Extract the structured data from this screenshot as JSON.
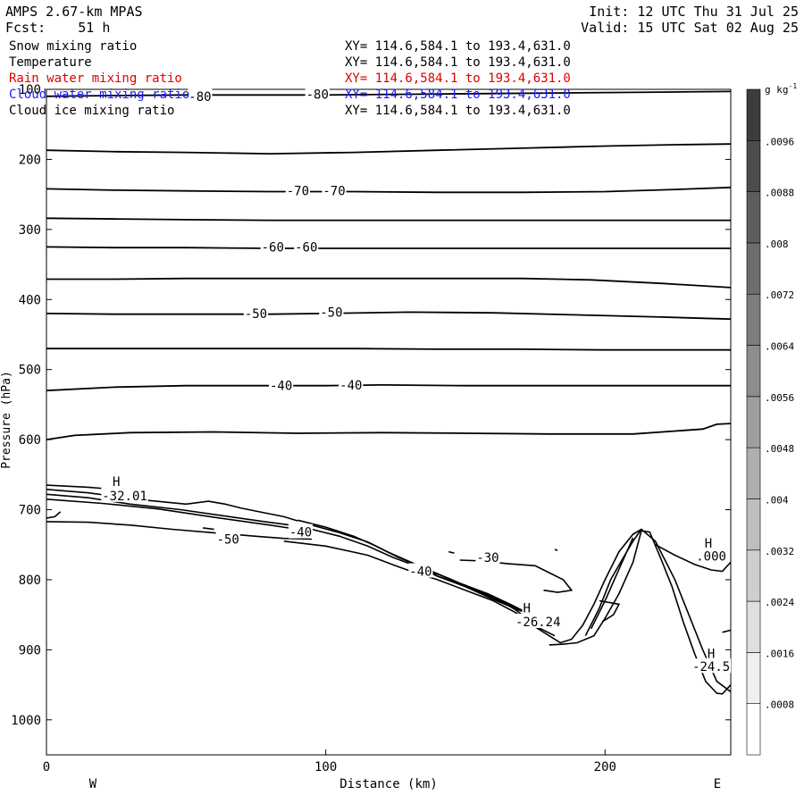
{
  "header": {
    "model": "AMPS 2.67-km MPAS",
    "forecast": "Fcst:    51 h",
    "init": "Init: 12 UTC Thu 31 Jul 25",
    "valid": "Valid: 15 UTC Sat 02 Aug 25"
  },
  "fields": [
    {
      "name": "Snow mixing ratio",
      "xy": "XY= 114.6,584.1 to 193.4,631.0",
      "color": "#000000"
    },
    {
      "name": "Temperature",
      "xy": "XY= 114.6,584.1 to 193.4,631.0",
      "color": "#000000"
    },
    {
      "name": "Rain water mixing ratio",
      "xy": "XY= 114.6,584.1 to 193.4,631.0",
      "color": "#dd0000"
    },
    {
      "name": "Cloud water mixing ratio",
      "xy": "XY= 114.6,584.1 to 193.4,631.0",
      "color": "#1a1aff"
    },
    {
      "name": "Cloud ice mixing ratio",
      "xy": "XY= 114.6,584.1 to 193.4,631.0",
      "color": "#000000"
    }
  ],
  "chart_data": {
    "type": "line",
    "xlabel": "Distance (km)",
    "ylabel": "Pressure (hPa)",
    "xlim": [
      0,
      245
    ],
    "ylim": [
      1050,
      100
    ],
    "x_ticks": [
      "0",
      "100",
      "200"
    ],
    "y_ticks": [
      "100",
      "200",
      "300",
      "400",
      "500",
      "600",
      "700",
      "800",
      "900",
      "1000"
    ],
    "x_end_labels": {
      "left": "W",
      "right": "E"
    },
    "colorbar": {
      "unit": "g kg",
      "unit_exponent": "-1",
      "tick_labels": [
        ".0008",
        ".0016",
        ".0024",
        ".0032",
        ".004",
        ".0048",
        ".0056",
        ".0064",
        ".0072",
        ".008",
        ".0088",
        ".0096"
      ]
    },
    "isotherms": [
      {
        "x": [
          0,
          20,
          50,
          80,
          100,
          130,
          160,
          190,
          220,
          245
        ],
        "y": [
          110,
          109,
          108,
          108,
          108,
          107,
          106,
          105,
          104,
          103
        ]
      },
      {
        "x": [
          0,
          25,
          50,
          80,
          110,
          140,
          170,
          200,
          225,
          245
        ],
        "y": [
          187,
          189,
          190,
          192,
          190,
          187,
          184,
          181,
          179,
          178
        ]
      },
      {
        "x": [
          0,
          25,
          50,
          80,
          110,
          140,
          170,
          200,
          225,
          245
        ],
        "y": [
          242,
          244,
          245,
          246,
          246,
          247,
          247,
          246,
          243,
          240
        ]
      },
      {
        "x": [
          0,
          25,
          50,
          80,
          110,
          140,
          170,
          200,
          225,
          245
        ],
        "y": [
          284,
          285,
          286,
          287,
          287,
          287,
          287,
          287,
          287,
          287
        ]
      },
      {
        "x": [
          0,
          25,
          50,
          80,
          100,
          130,
          160,
          190,
          220,
          245
        ],
        "y": [
          325,
          326,
          326,
          327,
          327,
          327,
          327,
          327,
          327,
          327
        ]
      },
      {
        "x": [
          0,
          25,
          50,
          80,
          110,
          140,
          170,
          195,
          220,
          245
        ],
        "y": [
          371,
          371,
          370,
          370,
          370,
          370,
          370,
          372,
          377,
          383
        ]
      },
      {
        "x": [
          0,
          25,
          50,
          80,
          100,
          130,
          160,
          190,
          220,
          245
        ],
        "y": [
          420,
          421,
          421,
          421,
          420,
          418,
          419,
          422,
          425,
          428
        ]
      },
      {
        "x": [
          0,
          25,
          50,
          80,
          110,
          140,
          170,
          200,
          225,
          245
        ],
        "y": [
          470,
          470,
          470,
          470,
          470,
          471,
          471,
          472,
          472,
          472
        ]
      },
      {
        "x": [
          0,
          25,
          50,
          80,
          100,
          120,
          150,
          180,
          210,
          245
        ],
        "y": [
          530,
          525,
          523,
          523,
          523,
          522,
          523,
          523,
          523,
          523
        ]
      },
      {
        "x": [
          0,
          10,
          30,
          60,
          90,
          120,
          150,
          180,
          210,
          235,
          240,
          245
        ],
        "y": [
          600,
          594,
          590,
          589,
          591,
          590,
          591,
          592,
          592,
          585,
          578,
          577
        ]
      }
    ],
    "contour_labels": [
      {
        "text": "-80",
        "x": 55,
        "y": 110
      },
      {
        "text": "-80",
        "x": 97,
        "y": 107
      },
      {
        "text": "-70",
        "x": 90,
        "y": 245
      },
      {
        "text": "-70",
        "x": 103,
        "y": 245
      },
      {
        "text": "-60",
        "x": 81,
        "y": 325
      },
      {
        "text": "-60",
        "x": 93,
        "y": 325
      },
      {
        "text": "-50",
        "x": 75,
        "y": 420
      },
      {
        "text": "-50",
        "x": 102,
        "y": 418
      },
      {
        "text": "-40",
        "x": 84,
        "y": 523
      },
      {
        "text": "-40",
        "x": 109,
        "y": 522
      },
      {
        "text": "H",
        "x": 25,
        "y": 660
      },
      {
        "text": "-32.01",
        "x": 28,
        "y": 680
      },
      {
        "text": "-40",
        "x": 91,
        "y": 732
      },
      {
        "text": "-50",
        "x": 65,
        "y": 742
      },
      {
        "text": "-40",
        "x": 134,
        "y": 788
      },
      {
        "text": "-30",
        "x": 158,
        "y": 768
      },
      {
        "text": "H",
        "x": 172,
        "y": 840
      },
      {
        "text": "-26.24",
        "x": 176,
        "y": 860
      },
      {
        "text": "H",
        "x": 237,
        "y": 748
      },
      {
        "text": ".000",
        "x": 238,
        "y": 766
      },
      {
        "text": "H",
        "x": 238,
        "y": 905
      },
      {
        "text": "-24.5",
        "x": 238,
        "y": 924
      }
    ],
    "lower_contours": [
      {
        "x": [
          0,
          15,
          30
        ],
        "y": [
          665,
          668,
          673
        ]
      },
      {
        "x": [
          0,
          15,
          32,
          50,
          58,
          64,
          70,
          75,
          85,
          90
        ],
        "y": [
          671,
          676,
          685,
          692,
          688,
          692,
          698,
          702,
          710,
          716
        ]
      },
      {
        "x": [
          0,
          15,
          30,
          48,
          62,
          78,
          95
        ],
        "y": [
          678,
          683,
          692,
          700,
          708,
          717,
          726
        ]
      },
      {
        "x": [
          0,
          20,
          40,
          62,
          80,
          90
        ],
        "y": [
          685,
          691,
          699,
          712,
          722,
          728
        ]
      },
      {
        "x": [
          0,
          15,
          30,
          45,
          60,
          75,
          85,
          95
        ],
        "y": [
          717,
          718,
          722,
          728,
          733,
          738,
          741,
          742
        ]
      },
      {
        "x": [
          5,
          3,
          0
        ],
        "y": [
          703,
          710,
          712
        ]
      },
      {
        "x": [
          56,
          60
        ],
        "y": [
          726,
          728
        ]
      },
      {
        "x": [
          90,
          100,
          110,
          118,
          126,
          132,
          140,
          150,
          160,
          168,
          172
        ],
        "y": [
          715,
          725,
          738,
          752,
          768,
          778,
          795,
          808,
          825,
          840,
          848
        ]
      },
      {
        "x": [
          95,
          105,
          115,
          122,
          130,
          138,
          148,
          158,
          166,
          171
        ],
        "y": [
          722,
          733,
          746,
          760,
          774,
          788,
          805,
          820,
          835,
          845
        ]
      },
      {
        "x": [
          95,
          105,
          115,
          124,
          132,
          140,
          150,
          160,
          170
        ],
        "y": [
          728,
          738,
          752,
          768,
          780,
          795,
          810,
          828,
          845
        ]
      },
      {
        "x": [
          85,
          100,
          115,
          125,
          132,
          140,
          150,
          160,
          168,
          174,
          180,
          184,
          188,
          192,
          196,
          200,
          205,
          210,
          213,
          218,
          225,
          230,
          235,
          240,
          245
        ],
        "y": [
          745,
          752,
          765,
          780,
          790,
          800,
          815,
          830,
          847,
          865,
          880,
          890,
          885,
          865,
          835,
          800,
          760,
          735,
          728,
          745,
          800,
          850,
          900,
          945,
          960
        ]
      },
      {
        "x": [
          130,
          136,
          144,
          152,
          160,
          165,
          168,
          172,
          176,
          182
        ],
        "y": [
          780,
          786,
          798,
          812,
          826,
          836,
          843,
          856,
          868,
          880
        ]
      },
      {
        "x": [
          180,
          185,
          190,
          196,
          200,
          205,
          210,
          213,
          216,
          220,
          224,
          228,
          232,
          236,
          240,
          242,
          245
        ],
        "y": [
          893,
          892,
          890,
          880,
          855,
          820,
          775,
          730,
          732,
          770,
          810,
          860,
          905,
          945,
          962,
          963,
          950
        ]
      },
      {
        "x": [
          193,
          198,
          202,
          206,
          210,
          213
        ],
        "y": [
          880,
          840,
          800,
          772,
          745,
          728
        ]
      },
      {
        "x": [
          195,
          200,
          205,
          210
        ],
        "y": [
          870,
          830,
          785,
          740
        ]
      },
      {
        "x": [
          148,
          155,
          165,
          175,
          180,
          185,
          188,
          183,
          178
        ],
        "y": [
          772,
          773,
          777,
          780,
          790,
          800,
          815,
          818,
          815
        ]
      },
      {
        "x": [
          198,
          205,
          203,
          199
        ],
        "y": [
          830,
          835,
          850,
          860
        ]
      },
      {
        "x": [
          218,
          225,
          232,
          238,
          242,
          245
        ],
        "y": [
          750,
          765,
          778,
          786,
          788,
          775
        ]
      },
      {
        "x": [
          242,
          245
        ],
        "y": [
          875,
          872
        ]
      },
      {
        "x": [
          144,
          146
        ],
        "y": [
          760,
          762
        ]
      },
      {
        "x": [
          182,
          183
        ],
        "y": [
          757,
          758
        ]
      }
    ]
  }
}
